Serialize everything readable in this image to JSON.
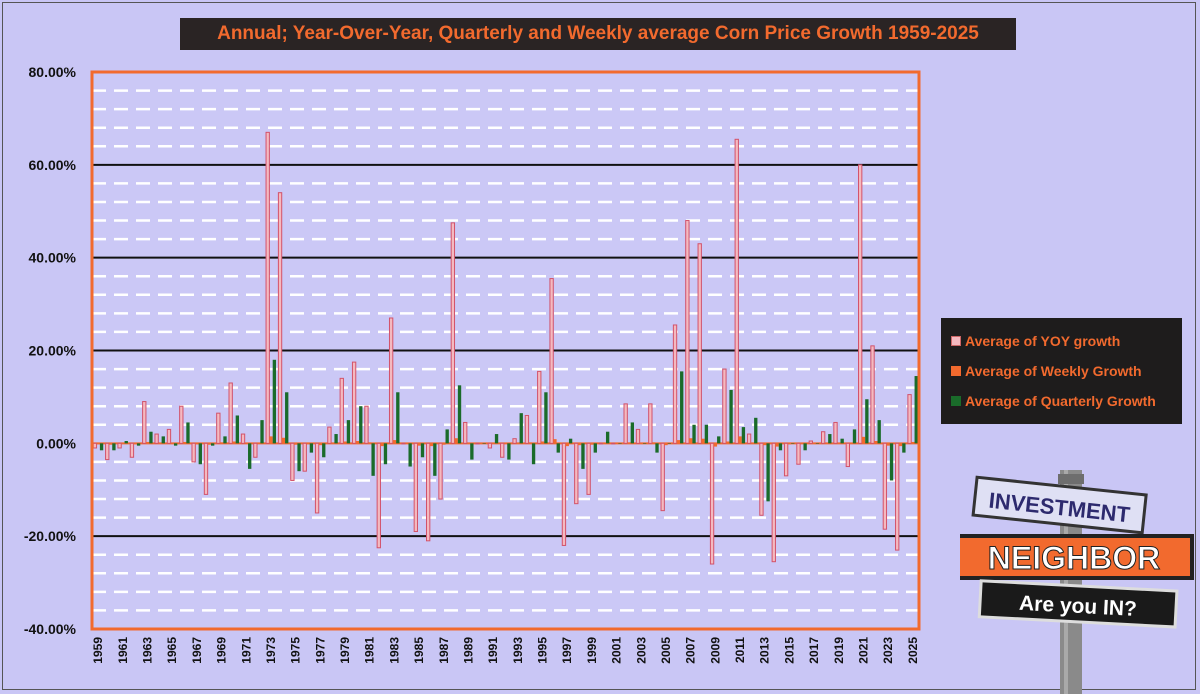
{
  "title": "Annual; Year-Over-Year, Quarterly and Weekly average Corn Price Growth 1959-2025",
  "legend": {
    "items": [
      {
        "label": "Average of YOY growth",
        "color": "#f4b9c0"
      },
      {
        "label": "Average of Weekly Growth",
        "color": "#f26a2e"
      },
      {
        "label": "Average of Quarterly Growth",
        "color": "#1a6b2a"
      }
    ]
  },
  "logo": {
    "line1": "INVESTMENT",
    "line2": "NEIGHBOR",
    "line3": "Are you IN?"
  },
  "chart_data": {
    "type": "bar",
    "title": "Annual; Year-Over-Year, Quarterly and Weekly average Corn Price Growth 1959-2025",
    "xlabel": "",
    "ylabel": "",
    "ylim": [
      -40,
      80
    ],
    "y_tick_labels": [
      "80.00%",
      "60.00%",
      "40.00%",
      "20.00%",
      "0.00%",
      "-20.00%",
      "-40.00%"
    ],
    "grid": true,
    "legend_position": "right",
    "categories": [
      1959,
      1960,
      1961,
      1962,
      1963,
      1964,
      1965,
      1966,
      1967,
      1968,
      1969,
      1970,
      1971,
      1972,
      1973,
      1974,
      1975,
      1976,
      1977,
      1978,
      1979,
      1980,
      1981,
      1982,
      1983,
      1984,
      1985,
      1986,
      1987,
      1988,
      1989,
      1990,
      1991,
      1992,
      1993,
      1994,
      1995,
      1996,
      1997,
      1998,
      1999,
      2000,
      2001,
      2002,
      2003,
      2004,
      2005,
      2006,
      2007,
      2008,
      2009,
      2010,
      2011,
      2012,
      2013,
      2014,
      2015,
      2016,
      2017,
      2018,
      2019,
      2020,
      2021,
      2022,
      2023,
      2024,
      2025
    ],
    "x_tick_labels": [
      "1959",
      "1961",
      "1963",
      "1965",
      "1967",
      "1969",
      "1971",
      "1973",
      "1975",
      "1977",
      "1979",
      "1981",
      "1983",
      "1985",
      "1987",
      "1989",
      "1991",
      "1993",
      "1995",
      "1997",
      "1999",
      "2001",
      "2003",
      "2005",
      "2007",
      "2009",
      "2011",
      "2013",
      "2015",
      "2017",
      "2019",
      "2021",
      "2023",
      "2025"
    ],
    "series": [
      {
        "name": "Average of YOY growth",
        "color": "#f4b9c0",
        "values": [
          -1,
          -3.5,
          -1,
          -3,
          9,
          2,
          3,
          8,
          -4,
          -11,
          6.5,
          13,
          2,
          -3,
          67,
          54,
          -8,
          -6,
          -15,
          3.5,
          14,
          17.5,
          8,
          -22.5,
          27,
          0,
          -19,
          -21,
          -12,
          47.5,
          4.5,
          0,
          -1,
          -3,
          1,
          6,
          15.5,
          35.5,
          -22,
          -13,
          -11,
          0,
          0,
          8.5,
          3,
          8.5,
          -14.5,
          25.5,
          48,
          43,
          -26,
          16,
          65.5,
          2,
          -15.5,
          -25.5,
          -7,
          -4.5,
          0.5,
          2.5,
          4.5,
          -5,
          60,
          21,
          -18.5,
          -23,
          10.5
        ]
      },
      {
        "name": "Average of Weekly Growth",
        "color": "#f26a2e",
        "values": [
          -0.2,
          -0.3,
          0.1,
          -0.2,
          0.3,
          0.1,
          0.1,
          0.3,
          -0.2,
          -0.3,
          0.2,
          0.4,
          0.1,
          -0.1,
          1.5,
          1.2,
          -0.3,
          -0.2,
          -0.4,
          0.1,
          0.4,
          0.5,
          0.2,
          -0.6,
          0.7,
          0,
          -0.5,
          -0.6,
          -0.3,
          1.1,
          0.1,
          0,
          -0.1,
          -0.1,
          0,
          0.2,
          0.4,
          0.9,
          -0.6,
          -0.4,
          -0.3,
          0,
          0,
          0.2,
          0.1,
          0.2,
          -0.4,
          0.7,
          1.1,
          1,
          -0.7,
          0.4,
          1.5,
          0.1,
          -0.4,
          -0.7,
          -0.2,
          -0.1,
          0,
          0.1,
          0.1,
          -0.1,
          1.4,
          0.5,
          -0.5,
          -0.6,
          0.3
        ]
      },
      {
        "name": "Average of Quarterly Growth",
        "color": "#1a6b2a",
        "values": [
          -1.5,
          -1.5,
          0.5,
          -0.5,
          2.5,
          1.5,
          -0.5,
          4.5,
          -4.5,
          -0.5,
          1.5,
          6,
          -5.5,
          5,
          18,
          11,
          -6,
          -2,
          -3,
          2,
          5,
          8,
          -7,
          -4.5,
          11,
          -5,
          -3,
          -7,
          3,
          12.5,
          -3.5,
          0,
          2,
          -3.5,
          6.5,
          -4.5,
          11,
          -2,
          1,
          -5.5,
          -2,
          2.5,
          0,
          4.5,
          0,
          -2,
          0,
          15.5,
          4,
          4,
          1.5,
          11.5,
          3.5,
          5.5,
          -12.5,
          -1.5,
          0,
          -1.5,
          0,
          2,
          1,
          3,
          9.5,
          5,
          -8,
          -2,
          14.5
        ]
      }
    ]
  }
}
